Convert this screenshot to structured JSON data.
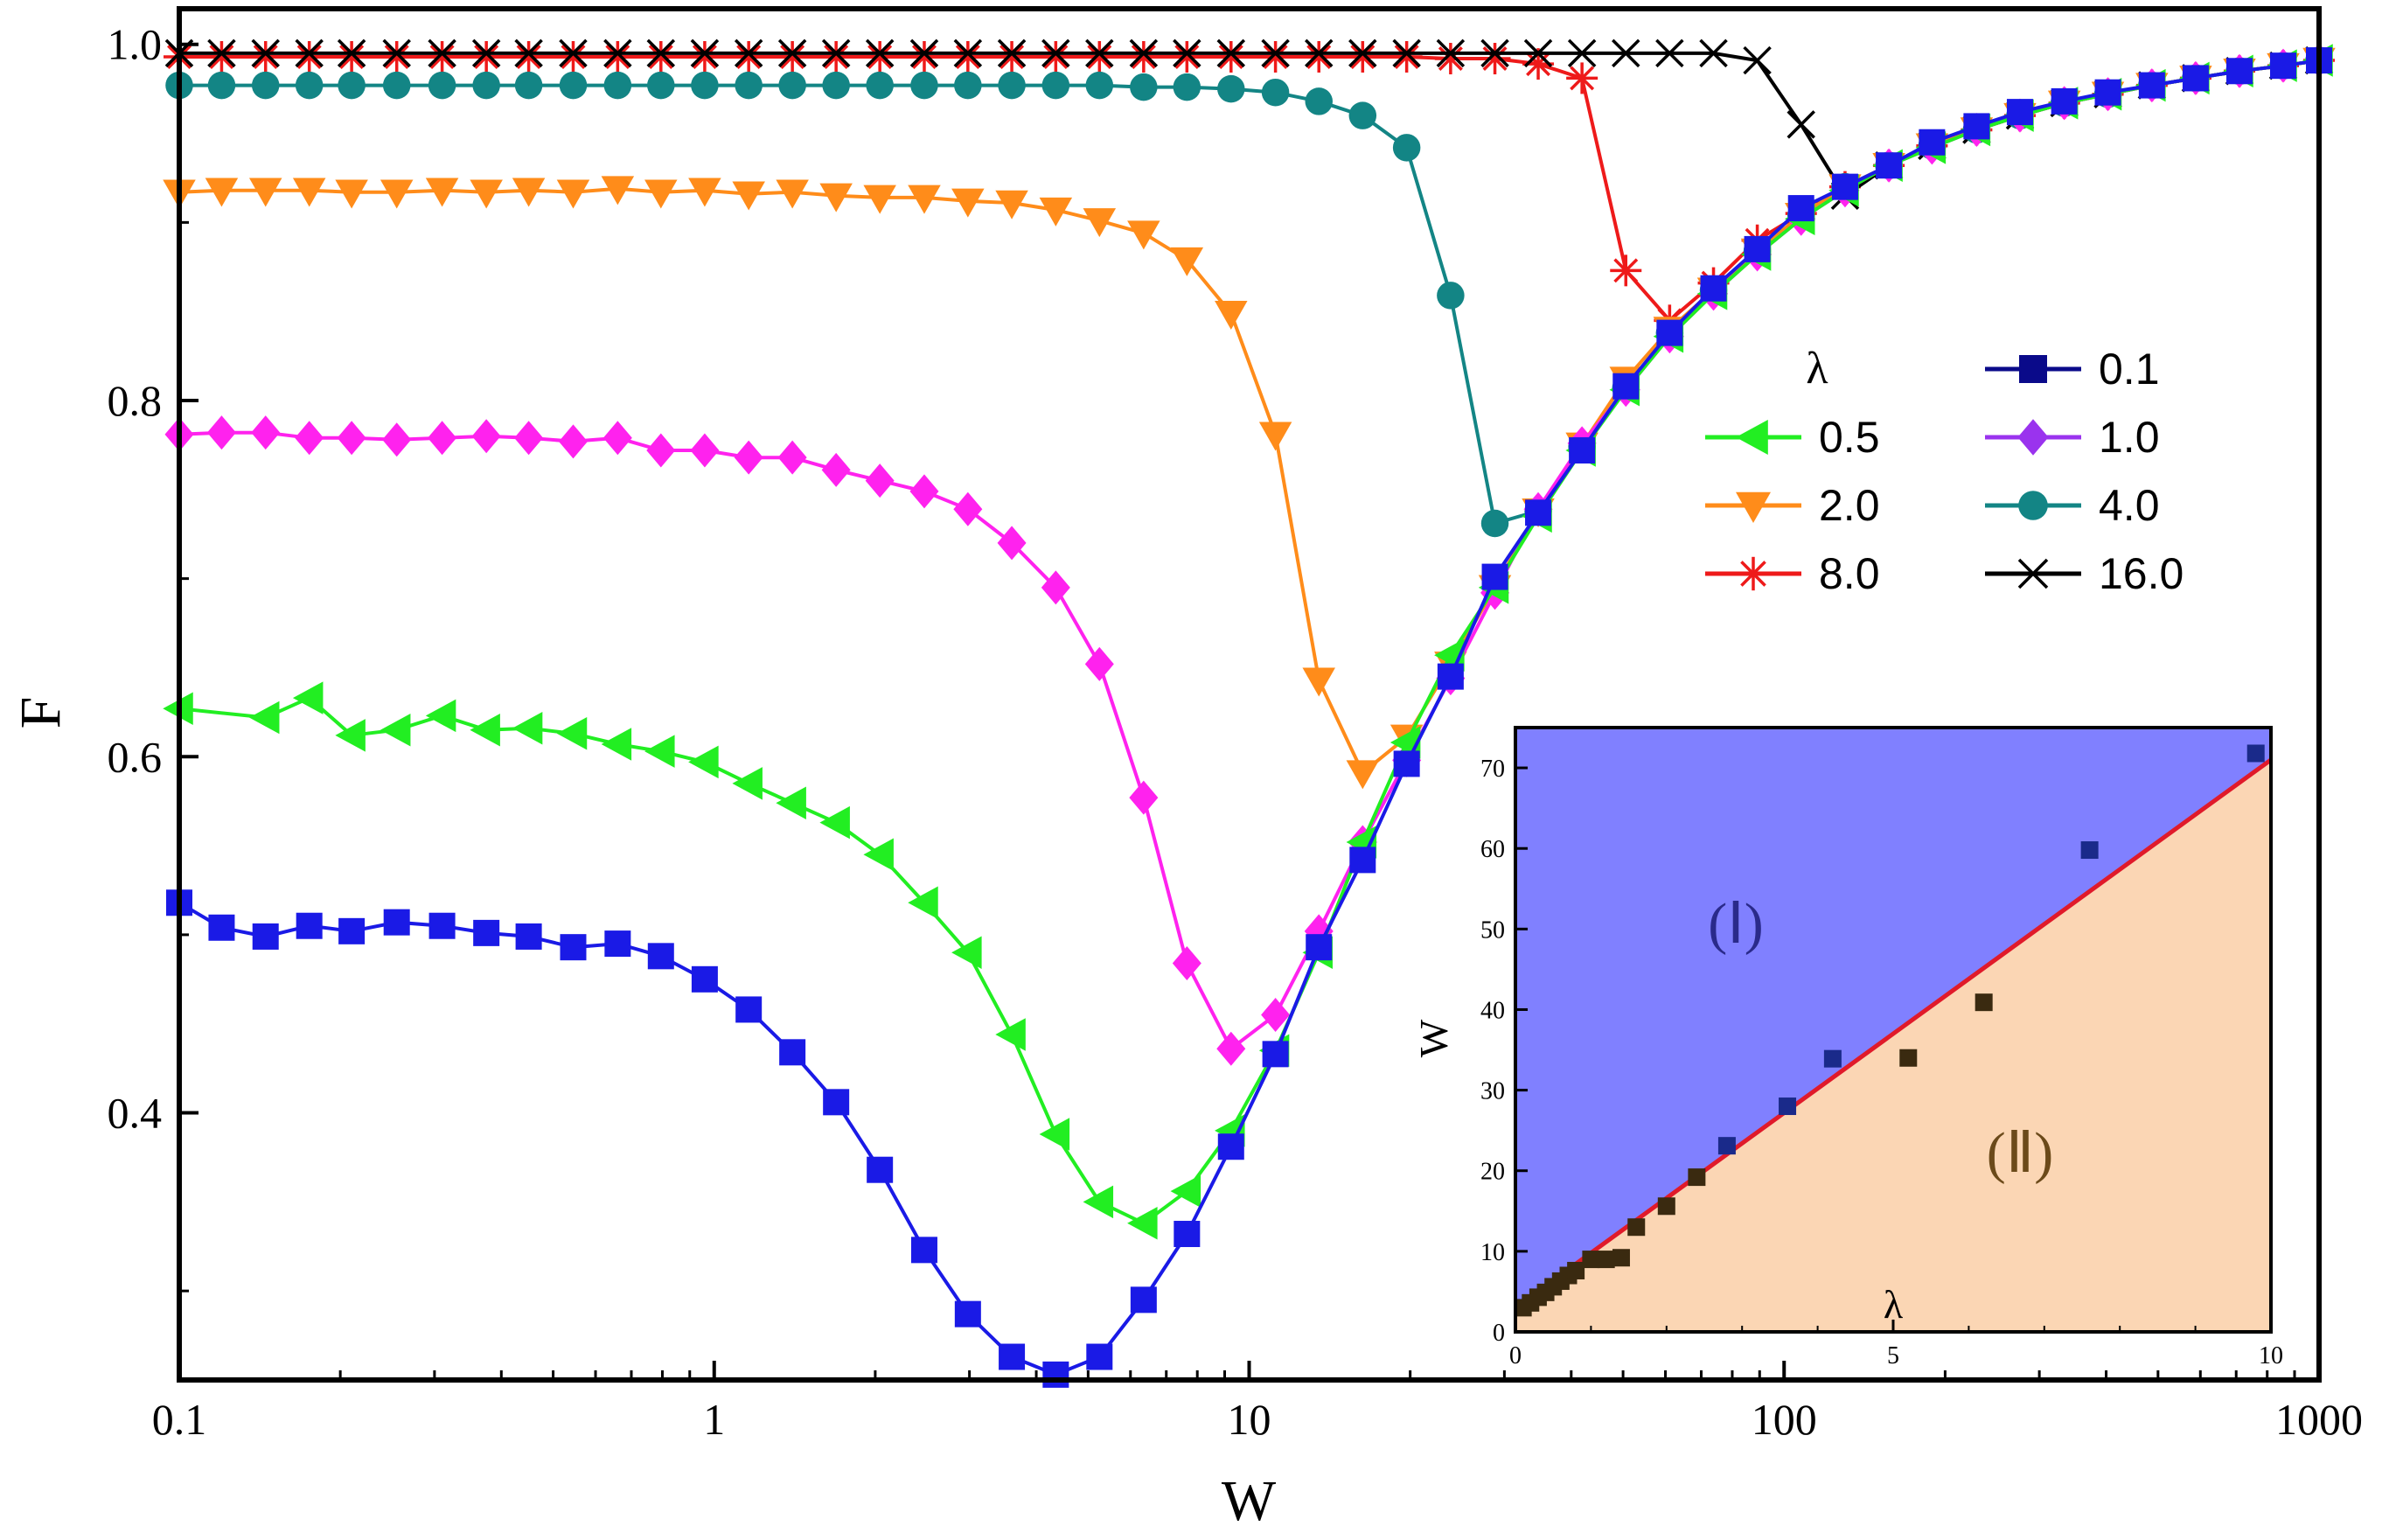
{
  "chart_data": [
    {
      "type": "line",
      "title": "",
      "xlabel": "W",
      "ylabel": "F",
      "xscale": "log",
      "xlim": [
        0.1,
        1000
      ],
      "ylim": [
        0.25,
        1.02
      ],
      "xticks": [
        0.1,
        1,
        10,
        100,
        1000
      ],
      "xtick_labels": [
        "0.1",
        "1",
        "10",
        "100",
        "1000"
      ],
      "yticks": [
        0.4,
        0.6,
        0.8,
        1.0
      ],
      "ytick_labels": [
        "0.4",
        "0.6",
        "0.8",
        "1.0"
      ],
      "legend_title": "λ",
      "legend_position": "right-center",
      "series": [
        {
          "name": "0.1",
          "marker": "square",
          "color": "#1a1ae6",
          "legend_color": "#0a0a8a",
          "x": [
            0.1,
            0.12,
            0.145,
            0.175,
            0.21,
            0.255,
            0.31,
            0.375,
            0.45,
            0.545,
            0.66,
            0.795,
            0.96,
            1.16,
            1.4,
            1.69,
            2.04,
            2.47,
            2.98,
            3.6,
            4.35,
            5.25,
            6.35,
            7.65,
            9.25,
            11.2,
            13.5,
            16.3,
            19.7,
            23.8,
            28.8,
            34.7,
            41.9,
            50.6,
            61.1,
            73.8,
            89.1,
            107.6,
            130,
            157,
            189,
            229,
            276,
            334,
            403,
            487,
            588,
            710,
            857,
            1000
          ],
          "y": [
            0.518,
            0.504,
            0.499,
            0.505,
            0.502,
            0.507,
            0.505,
            0.501,
            0.499,
            0.493,
            0.495,
            0.488,
            0.475,
            0.458,
            0.434,
            0.406,
            0.368,
            0.323,
            0.287,
            0.263,
            0.253,
            0.263,
            0.295,
            0.332,
            0.381,
            0.433,
            0.493,
            0.542,
            0.596,
            0.645,
            0.701,
            0.737,
            0.772,
            0.808,
            0.838,
            0.863,
            0.885,
            0.908,
            0.92,
            0.932,
            0.945,
            0.954,
            0.962,
            0.968,
            0.973,
            0.977,
            0.981,
            0.985,
            0.988,
            0.991
          ]
        },
        {
          "name": "0.5",
          "marker": "triangle-left",
          "color": "#22ee22",
          "x": [
            0.1,
            0.145,
            0.175,
            0.21,
            0.255,
            0.31,
            0.375,
            0.45,
            0.545,
            0.66,
            0.795,
            0.96,
            1.16,
            1.4,
            1.69,
            2.04,
            2.47,
            2.98,
            3.6,
            4.35,
            5.25,
            6.35,
            7.65,
            9.25,
            11.2,
            13.5,
            16.3,
            19.7,
            23.8,
            28.8,
            34.7,
            41.9,
            50.6,
            61.1,
            73.8,
            89.1,
            107.6,
            130,
            157,
            189,
            229,
            276,
            334,
            403,
            487,
            588,
            710,
            857,
            1000
          ],
          "y": [
            0.627,
            0.622,
            0.633,
            0.612,
            0.615,
            0.623,
            0.615,
            0.616,
            0.613,
            0.607,
            0.603,
            0.597,
            0.585,
            0.574,
            0.563,
            0.545,
            0.518,
            0.49,
            0.444,
            0.388,
            0.35,
            0.338,
            0.356,
            0.39,
            0.435,
            0.49,
            0.552,
            0.608,
            0.657,
            0.695,
            0.735,
            0.772,
            0.806,
            0.836,
            0.86,
            0.882,
            0.902,
            0.918,
            0.932,
            0.942,
            0.952,
            0.96,
            0.967,
            0.972,
            0.977,
            0.981,
            0.985,
            0.988,
            0.991
          ]
        },
        {
          "name": "1.0",
          "marker": "diamond",
          "color": "#ff22ee",
          "legend_color": "#9a33ee",
          "x": [
            0.1,
            0.12,
            0.145,
            0.175,
            0.21,
            0.255,
            0.31,
            0.375,
            0.45,
            0.545,
            0.66,
            0.795,
            0.96,
            1.16,
            1.4,
            1.69,
            2.04,
            2.47,
            2.98,
            3.6,
            4.35,
            5.25,
            6.35,
            7.65,
            9.25,
            11.2,
            13.5,
            16.3,
            19.7,
            23.8,
            28.8,
            34.7,
            41.9,
            50.6,
            61.1,
            73.8,
            89.1,
            107.6,
            130,
            157,
            189,
            229,
            276,
            334,
            403,
            487,
            588,
            710,
            857,
            1000
          ],
          "y": [
            0.781,
            0.782,
            0.782,
            0.779,
            0.779,
            0.778,
            0.779,
            0.78,
            0.779,
            0.777,
            0.779,
            0.772,
            0.772,
            0.768,
            0.768,
            0.761,
            0.755,
            0.749,
            0.739,
            0.72,
            0.695,
            0.652,
            0.577,
            0.484,
            0.436,
            0.455,
            0.502,
            0.552,
            0.598,
            0.644,
            0.692,
            0.739,
            0.776,
            0.806,
            0.836,
            0.86,
            0.882,
            0.902,
            0.918,
            0.932,
            0.942,
            0.952,
            0.96,
            0.967,
            0.972,
            0.977,
            0.981,
            0.985,
            0.988,
            0.991
          ]
        },
        {
          "name": "2.0",
          "marker": "triangle-down",
          "color": "#ff8c1a",
          "x": [
            0.1,
            0.12,
            0.145,
            0.175,
            0.21,
            0.255,
            0.31,
            0.375,
            0.45,
            0.545,
            0.66,
            0.795,
            0.96,
            1.16,
            1.4,
            1.69,
            2.04,
            2.47,
            2.98,
            3.6,
            4.35,
            5.25,
            6.35,
            7.65,
            9.25,
            11.2,
            13.5,
            16.3,
            19.7,
            23.8,
            28.8,
            34.7,
            41.9,
            50.6,
            61.1,
            73.8,
            89.1,
            107.6,
            130,
            157,
            189,
            229,
            276,
            334,
            403,
            487,
            588,
            710,
            857,
            1000
          ],
          "y": [
            0.917,
            0.918,
            0.918,
            0.918,
            0.917,
            0.917,
            0.918,
            0.917,
            0.918,
            0.917,
            0.919,
            0.917,
            0.918,
            0.916,
            0.917,
            0.915,
            0.914,
            0.914,
            0.912,
            0.911,
            0.907,
            0.901,
            0.894,
            0.879,
            0.849,
            0.781,
            0.643,
            0.591,
            0.611,
            0.652,
            0.695,
            0.738,
            0.775,
            0.812,
            0.84,
            0.862,
            0.884,
            0.904,
            0.92,
            0.932,
            0.943,
            0.952,
            0.96,
            0.967,
            0.972,
            0.977,
            0.981,
            0.985,
            0.988,
            0.991
          ]
        },
        {
          "name": "4.0",
          "marker": "circle",
          "color": "#138585",
          "x": [
            0.1,
            0.12,
            0.145,
            0.175,
            0.21,
            0.255,
            0.31,
            0.375,
            0.45,
            0.545,
            0.66,
            0.795,
            0.96,
            1.16,
            1.4,
            1.69,
            2.04,
            2.47,
            2.98,
            3.6,
            4.35,
            5.25,
            6.35,
            7.65,
            9.25,
            11.2,
            13.5,
            16.3,
            19.7,
            23.8,
            28.8,
            34.7,
            41.9,
            50.6,
            61.1,
            73.8,
            89.1,
            107.6,
            130,
            157,
            189,
            229,
            276,
            334,
            403,
            487,
            588,
            710,
            857,
            1000
          ],
          "y": [
            0.977,
            0.977,
            0.977,
            0.977,
            0.977,
            0.977,
            0.977,
            0.977,
            0.977,
            0.977,
            0.977,
            0.977,
            0.977,
            0.977,
            0.977,
            0.977,
            0.977,
            0.977,
            0.977,
            0.977,
            0.977,
            0.977,
            0.976,
            0.976,
            0.975,
            0.973,
            0.968,
            0.96,
            0.942,
            0.859,
            0.731,
            0.738,
            0.774,
            0.807,
            0.838,
            0.862,
            0.884,
            0.904,
            0.92,
            0.932,
            0.943,
            0.952,
            0.96,
            0.967,
            0.972,
            0.977,
            0.981,
            0.985,
            0.988,
            0.991
          ]
        },
        {
          "name": "8.0",
          "marker": "asterisk",
          "color": "#ee1a1a",
          "x": [
            0.1,
            0.12,
            0.145,
            0.175,
            0.21,
            0.255,
            0.31,
            0.375,
            0.45,
            0.545,
            0.66,
            0.795,
            0.96,
            1.16,
            1.4,
            1.69,
            2.04,
            2.47,
            2.98,
            3.6,
            4.35,
            5.25,
            6.35,
            7.65,
            9.25,
            11.2,
            13.5,
            16.3,
            19.7,
            23.8,
            28.8,
            34.7,
            41.9,
            50.6,
            61.1,
            73.8,
            89.1,
            107.6,
            130,
            157,
            189,
            229,
            276,
            334,
            403,
            487,
            588,
            710,
            857,
            1000
          ],
          "y": [
            0.993,
            0.993,
            0.993,
            0.993,
            0.993,
            0.993,
            0.993,
            0.993,
            0.993,
            0.993,
            0.993,
            0.993,
            0.993,
            0.993,
            0.993,
            0.993,
            0.993,
            0.993,
            0.993,
            0.993,
            0.993,
            0.993,
            0.993,
            0.993,
            0.993,
            0.993,
            0.993,
            0.993,
            0.993,
            0.992,
            0.992,
            0.989,
            0.981,
            0.873,
            0.845,
            0.866,
            0.89,
            0.905,
            0.92,
            0.932,
            0.943,
            0.952,
            0.96,
            0.967,
            0.972,
            0.977,
            0.981,
            0.985,
            0.988,
            0.991
          ]
        },
        {
          "name": "16.0",
          "marker": "x",
          "color": "#000000",
          "x": [
            0.1,
            0.12,
            0.145,
            0.175,
            0.21,
            0.255,
            0.31,
            0.375,
            0.45,
            0.545,
            0.66,
            0.795,
            0.96,
            1.16,
            1.4,
            1.69,
            2.04,
            2.47,
            2.98,
            3.6,
            4.35,
            5.25,
            6.35,
            7.65,
            9.25,
            11.2,
            13.5,
            16.3,
            19.7,
            23.8,
            28.8,
            34.7,
            41.9,
            50.6,
            61.1,
            73.8,
            89.1,
            107.6,
            130,
            157,
            189,
            229,
            276,
            334,
            403,
            487,
            588,
            710,
            857,
            1000
          ],
          "y": [
            0.995,
            0.995,
            0.995,
            0.995,
            0.995,
            0.995,
            0.995,
            0.995,
            0.995,
            0.995,
            0.995,
            0.995,
            0.995,
            0.995,
            0.995,
            0.995,
            0.995,
            0.995,
            0.995,
            0.995,
            0.995,
            0.995,
            0.995,
            0.995,
            0.995,
            0.995,
            0.995,
            0.995,
            0.995,
            0.995,
            0.995,
            0.995,
            0.995,
            0.995,
            0.995,
            0.995,
            0.991,
            0.955,
            0.915,
            0.932,
            0.943,
            0.952,
            0.96,
            0.967,
            0.972,
            0.977,
            0.981,
            0.985,
            0.988,
            0.991
          ]
        }
      ]
    },
    {
      "type": "scatter",
      "role": "inset",
      "title": "",
      "xlabel": "λ",
      "ylabel": "W",
      "xlim": [
        0,
        10
      ],
      "ylim": [
        0,
        75
      ],
      "xticks": [
        0,
        5,
        10
      ],
      "xtick_labels": [
        "0",
        "5",
        "10"
      ],
      "yticks": [
        0,
        10,
        20,
        30,
        40,
        50,
        60,
        70
      ],
      "ytick_labels": [
        "0",
        "10",
        "20",
        "30",
        "40",
        "50",
        "60",
        "70"
      ],
      "points": {
        "x": [
          0.1,
          0.2,
          0.3,
          0.4,
          0.5,
          0.6,
          0.7,
          0.8,
          1.0,
          1.2,
          1.4,
          1.6,
          2.0,
          2.4,
          2.8,
          3.6,
          4.2,
          5.2,
          6.2,
          7.6,
          9.8
        ],
        "y": [
          3.0,
          3.6,
          4.3,
          4.9,
          5.6,
          6.3,
          7.0,
          7.6,
          9.0,
          9.0,
          9.2,
          13.0,
          15.6,
          19.2,
          23.1,
          28.0,
          33.9,
          34.0,
          40.9,
          59.8,
          71.8
        ],
        "color": "#1a2a8a"
      },
      "fit_line": {
        "x": [
          0,
          10
        ],
        "y": [
          3.0,
          71.0
        ],
        "color": "#e01a2a"
      },
      "regions": [
        {
          "label": "(Ⅰ)",
          "color": "#8080ff"
        },
        {
          "label": "(Ⅱ)",
          "color": "#fbd6b4"
        }
      ]
    }
  ]
}
